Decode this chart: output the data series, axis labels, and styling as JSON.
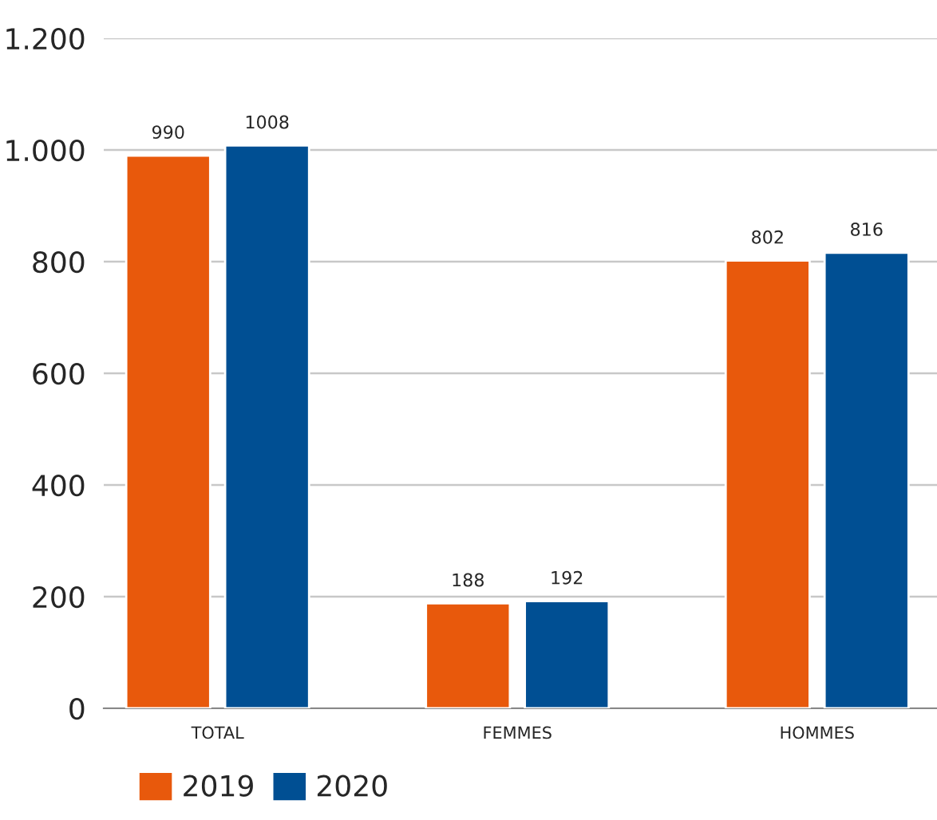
{
  "chart_data": {
    "type": "bar",
    "categories": [
      "TOTAL",
      "FEMMES",
      "HOMMES"
    ],
    "series": [
      {
        "name": "2019",
        "color": "#e8590c",
        "values": [
          990,
          188,
          802
        ]
      },
      {
        "name": "2020",
        "color": "#004f93",
        "values": [
          1008,
          192,
          816
        ]
      }
    ],
    "ylim": [
      0,
      1200
    ],
    "yticks": [
      0,
      200,
      400,
      600,
      800,
      {
        "value": 1000,
        "label": "1.000"
      },
      {
        "value": 1200,
        "label": "1.200"
      }
    ],
    "grid": "y",
    "legend": "bottom left",
    "data_labels": true
  }
}
